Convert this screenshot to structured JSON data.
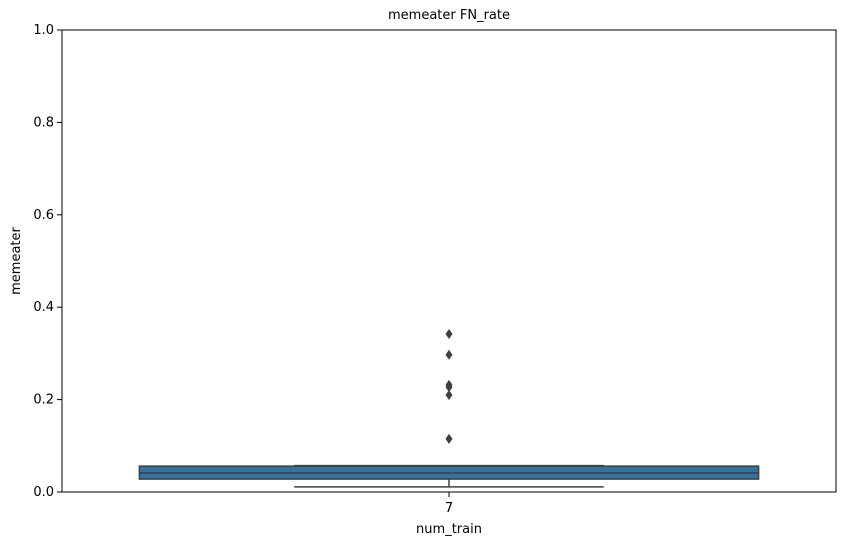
{
  "chart_data": {
    "type": "box",
    "title": "memeater FN_rate",
    "xlabel": "num_train",
    "ylabel": "memeater",
    "categories": [
      "7"
    ],
    "color": "#3274a1",
    "boxes": [
      {
        "whislo": 0.011,
        "q1": 0.028,
        "median": 0.041,
        "q3": 0.056,
        "whishi": 0.057,
        "fliers": [
          0.115,
          0.21,
          0.227,
          0.232,
          0.297,
          0.342
        ]
      }
    ],
    "ylim": [
      0,
      1
    ],
    "yticks": [
      {
        "value": 0,
        "label": "0.0"
      },
      {
        "value": 0.2,
        "label": "0.2"
      },
      {
        "value": 0.4,
        "label": "0.4"
      },
      {
        "value": 0.6,
        "label": "0.6"
      },
      {
        "value": 0.8,
        "label": "0.8"
      },
      {
        "value": 1,
        "label": "1.0"
      }
    ]
  }
}
